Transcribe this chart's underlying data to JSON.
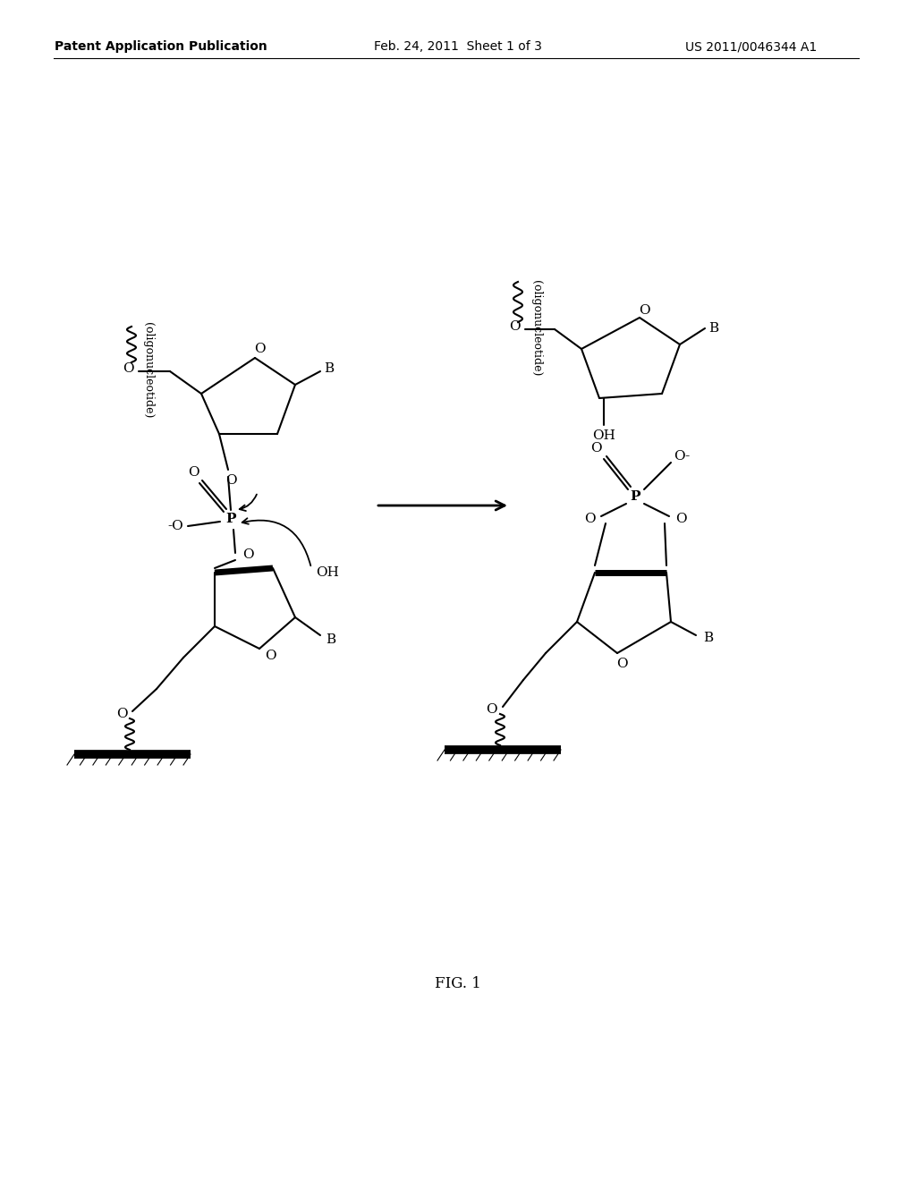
{
  "bg_color": "#ffffff",
  "header_left": "Patent Application Publication",
  "header_center": "Feb. 24, 2011  Sheet 1 of 3",
  "header_right": "US 2011/0046344 A1",
  "fig_label": "FIG. 1"
}
